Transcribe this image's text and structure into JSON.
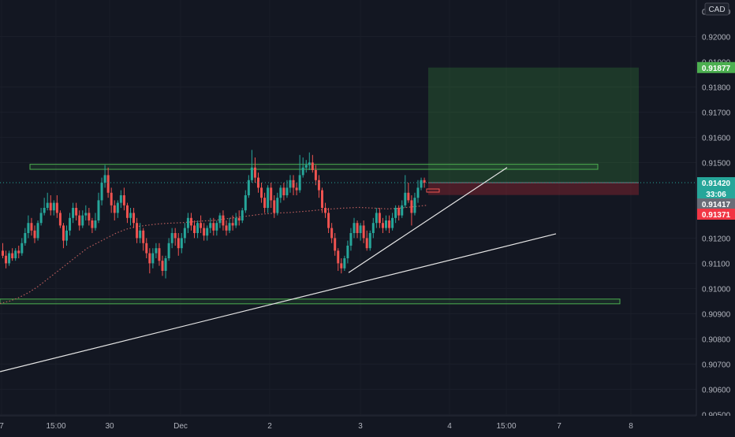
{
  "chart_data": {
    "type": "candlestick",
    "currency_label": "CAD",
    "ylim": [
      0.90495,
      0.92145
    ],
    "y_ticks": [
      "0.92000",
      "0.91800",
      "0.91700",
      "0.91600",
      "0.91500",
      "0.91200",
      "0.91100",
      "0.91000",
      "0.90900",
      "0.90800",
      "0.90700",
      "0.90600",
      "0.90500"
    ],
    "x_ticks": [
      "7",
      "15:00",
      "30",
      "Dec",
      "2",
      "3",
      "4",
      "15:00",
      "7",
      "8"
    ],
    "price_labels": {
      "target": "0.91877",
      "last": "0.91420",
      "countdown": "33:06",
      "avg": "0.91417",
      "stop": "0.91371"
    },
    "partially_hidden_ticks": [
      "0.91900",
      "0.92100"
    ],
    "zones": [
      {
        "name": "upper-resistance-zone",
        "y_top": 0.91493,
        "y_bottom": 0.91473
      },
      {
        "name": "lower-support-zone",
        "y_top": 0.90958,
        "y_bottom": 0.9095
      }
    ],
    "position": {
      "entry": 0.9142,
      "target": 0.91877,
      "stop": 0.91371
    },
    "trendlines": [
      {
        "name": "long-trendline",
        "from": 0.9067,
        "to": 0.91217
      },
      {
        "name": "short-trendline",
        "from": 0.91063,
        "to": 0.9148
      }
    ],
    "candles": [
      [
        0.9115,
        0.9113,
        0.9118,
        0.9112
      ],
      [
        0.9113,
        0.911,
        0.9115,
        0.9108
      ],
      [
        0.911,
        0.9114,
        0.9115,
        0.9109
      ],
      [
        0.9114,
        0.9112,
        0.9116,
        0.9111
      ],
      [
        0.9112,
        0.9115,
        0.9116,
        0.9111
      ],
      [
        0.9115,
        0.9114,
        0.9117,
        0.9112
      ],
      [
        0.9114,
        0.9118,
        0.912,
        0.9113
      ],
      [
        0.9118,
        0.9122,
        0.9124,
        0.9117
      ],
      [
        0.9122,
        0.9126,
        0.9129,
        0.912
      ],
      [
        0.9126,
        0.9123,
        0.9128,
        0.9121
      ],
      [
        0.9123,
        0.912,
        0.9125,
        0.9118
      ],
      [
        0.912,
        0.9126,
        0.9127,
        0.9119
      ],
      [
        0.9126,
        0.913,
        0.9132,
        0.9125
      ],
      [
        0.913,
        0.9132,
        0.9136,
        0.9129
      ],
      [
        0.9132,
        0.9134,
        0.9138,
        0.9131
      ],
      [
        0.9134,
        0.9131,
        0.9137,
        0.9129
      ],
      [
        0.9131,
        0.9134,
        0.9135,
        0.9129
      ],
      [
        0.9134,
        0.913,
        0.9137,
        0.9128
      ],
      [
        0.913,
        0.9125,
        0.9131,
        0.9124
      ],
      [
        0.9125,
        0.9119,
        0.9126,
        0.9116
      ],
      [
        0.9119,
        0.9123,
        0.9125,
        0.9117
      ],
      [
        0.9123,
        0.9128,
        0.913,
        0.9121
      ],
      [
        0.9128,
        0.9132,
        0.9134,
        0.9126
      ],
      [
        0.9132,
        0.9129,
        0.9134,
        0.9127
      ],
      [
        0.9129,
        0.9125,
        0.9131,
        0.9123
      ],
      [
        0.9125,
        0.9129,
        0.9131,
        0.9124
      ],
      [
        0.9129,
        0.913,
        0.9133,
        0.9127
      ],
      [
        0.913,
        0.9127,
        0.9132,
        0.9125
      ],
      [
        0.9127,
        0.9124,
        0.9128,
        0.9122
      ],
      [
        0.9124,
        0.9127,
        0.913,
        0.9123
      ],
      [
        0.9127,
        0.9135,
        0.9138,
        0.9126
      ],
      [
        0.9135,
        0.9142,
        0.9144,
        0.9133
      ],
      [
        0.9142,
        0.9145,
        0.9149,
        0.914
      ],
      [
        0.9145,
        0.9138,
        0.9148,
        0.9136
      ],
      [
        0.9138,
        0.9133,
        0.914,
        0.913
      ],
      [
        0.9133,
        0.913,
        0.9135,
        0.9127
      ],
      [
        0.913,
        0.9134,
        0.9135,
        0.9128
      ],
      [
        0.9134,
        0.9137,
        0.9139,
        0.9132
      ],
      [
        0.9137,
        0.9133,
        0.914,
        0.9131
      ],
      [
        0.9133,
        0.9128,
        0.9134,
        0.9126
      ],
      [
        0.9128,
        0.913,
        0.9132,
        0.9125
      ],
      [
        0.913,
        0.9126,
        0.9132,
        0.9124
      ],
      [
        0.9126,
        0.912,
        0.9128,
        0.9118
      ],
      [
        0.912,
        0.9123,
        0.9126,
        0.9118
      ],
      [
        0.9123,
        0.9118,
        0.9124,
        0.9115
      ],
      [
        0.9118,
        0.9114,
        0.912,
        0.9112
      ],
      [
        0.9114,
        0.911,
        0.9116,
        0.9106
      ],
      [
        0.911,
        0.9114,
        0.9116,
        0.9108
      ],
      [
        0.9114,
        0.9116,
        0.9118,
        0.9112
      ],
      [
        0.9116,
        0.9111,
        0.9118,
        0.9109
      ],
      [
        0.9111,
        0.9107,
        0.9113,
        0.9105
      ],
      [
        0.9107,
        0.9112,
        0.9113,
        0.9104
      ],
      [
        0.9112,
        0.9118,
        0.912,
        0.9111
      ],
      [
        0.9118,
        0.9122,
        0.9124,
        0.9116
      ],
      [
        0.9122,
        0.912,
        0.9124,
        0.9117
      ],
      [
        0.912,
        0.9116,
        0.9122,
        0.9113
      ],
      [
        0.9116,
        0.912,
        0.9122,
        0.9114
      ],
      [
        0.912,
        0.9124,
        0.9126,
        0.9118
      ],
      [
        0.9124,
        0.9128,
        0.913,
        0.9122
      ],
      [
        0.9128,
        0.9125,
        0.913,
        0.9123
      ],
      [
        0.9125,
        0.9122,
        0.9127,
        0.912
      ],
      [
        0.9122,
        0.9126,
        0.9127,
        0.912
      ],
      [
        0.9126,
        0.9124,
        0.9129,
        0.9122
      ],
      [
        0.9124,
        0.9121,
        0.9126,
        0.9119
      ],
      [
        0.9121,
        0.9124,
        0.9125,
        0.9119
      ],
      [
        0.9124,
        0.9126,
        0.9128,
        0.9122
      ],
      [
        0.9126,
        0.9123,
        0.9128,
        0.9121
      ],
      [
        0.9123,
        0.9126,
        0.9127,
        0.9121
      ],
      [
        0.9126,
        0.9129,
        0.913,
        0.9124
      ],
      [
        0.9129,
        0.9125,
        0.9131,
        0.9123
      ],
      [
        0.9125,
        0.9123,
        0.9127,
        0.9121
      ],
      [
        0.9123,
        0.9126,
        0.9128,
        0.9122
      ],
      [
        0.9126,
        0.9125,
        0.9129,
        0.9123
      ],
      [
        0.9125,
        0.9128,
        0.913,
        0.9124
      ],
      [
        0.9128,
        0.9127,
        0.9131,
        0.9125
      ],
      [
        0.9127,
        0.9131,
        0.9132,
        0.9126
      ],
      [
        0.9131,
        0.9137,
        0.9139,
        0.913
      ],
      [
        0.9137,
        0.9143,
        0.9145,
        0.9136
      ],
      [
        0.9143,
        0.9148,
        0.9155,
        0.9142
      ],
      [
        0.9148,
        0.9144,
        0.9152,
        0.9142
      ],
      [
        0.9144,
        0.914,
        0.9146,
        0.9138
      ],
      [
        0.914,
        0.9136,
        0.9142,
        0.9134
      ],
      [
        0.9136,
        0.9132,
        0.9138,
        0.913
      ],
      [
        0.9132,
        0.914,
        0.9141,
        0.913
      ],
      [
        0.914,
        0.9135,
        0.9142,
        0.9132
      ],
      [
        0.9135,
        0.913,
        0.9137,
        0.9128
      ],
      [
        0.913,
        0.9136,
        0.9138,
        0.9129
      ],
      [
        0.9136,
        0.914,
        0.9141,
        0.9134
      ],
      [
        0.914,
        0.9137,
        0.9142,
        0.9135
      ],
      [
        0.9137,
        0.914,
        0.9143,
        0.9136
      ],
      [
        0.914,
        0.9143,
        0.9145,
        0.9138
      ],
      [
        0.9143,
        0.914,
        0.9145,
        0.9137
      ],
      [
        0.914,
        0.9139,
        0.9142,
        0.9137
      ],
      [
        0.9139,
        0.9145,
        0.9153,
        0.9138
      ],
      [
        0.9145,
        0.9148,
        0.9152,
        0.9144
      ],
      [
        0.9148,
        0.9149,
        0.9151,
        0.9146
      ],
      [
        0.9149,
        0.915,
        0.9154,
        0.9147
      ],
      [
        0.915,
        0.9147,
        0.9153,
        0.9146
      ],
      [
        0.9147,
        0.9143,
        0.9149,
        0.9141
      ],
      [
        0.9143,
        0.9139,
        0.9145,
        0.9136
      ],
      [
        0.9139,
        0.9132,
        0.914,
        0.913
      ],
      [
        0.9132,
        0.913,
        0.9134,
        0.9128
      ],
      [
        0.913,
        0.9124,
        0.9132,
        0.9122
      ],
      [
        0.9124,
        0.912,
        0.9126,
        0.9118
      ],
      [
        0.912,
        0.9115,
        0.9122,
        0.9113
      ],
      [
        0.9115,
        0.911,
        0.9116,
        0.9107
      ],
      [
        0.911,
        0.9108,
        0.9112,
        0.9106
      ],
      [
        0.9108,
        0.9112,
        0.9113,
        0.9107
      ],
      [
        0.9112,
        0.9117,
        0.9119,
        0.911
      ],
      [
        0.9117,
        0.9122,
        0.9124,
        0.9115
      ],
      [
        0.9122,
        0.9126,
        0.9128,
        0.912
      ],
      [
        0.9126,
        0.9122,
        0.9127,
        0.912
      ],
      [
        0.9122,
        0.9125,
        0.9126,
        0.9119
      ],
      [
        0.9125,
        0.912,
        0.9127,
        0.9118
      ],
      [
        0.912,
        0.9116,
        0.9123,
        0.9115
      ],
      [
        0.9116,
        0.9122,
        0.9123,
        0.9115
      ],
      [
        0.9122,
        0.9126,
        0.9128,
        0.912
      ],
      [
        0.9126,
        0.913,
        0.9132,
        0.9124
      ],
      [
        0.913,
        0.9126,
        0.9132,
        0.9124
      ],
      [
        0.9126,
        0.9124,
        0.9128,
        0.9122
      ],
      [
        0.9124,
        0.9127,
        0.9129,
        0.9123
      ],
      [
        0.9127,
        0.9124,
        0.9129,
        0.9122
      ],
      [
        0.9124,
        0.9128,
        0.913,
        0.9123
      ],
      [
        0.9128,
        0.9132,
        0.9133,
        0.9126
      ],
      [
        0.9132,
        0.9129,
        0.9133,
        0.9127
      ],
      [
        0.9129,
        0.9133,
        0.9135,
        0.9128
      ],
      [
        0.9133,
        0.9138,
        0.9145,
        0.9132
      ],
      [
        0.9138,
        0.9135,
        0.9142,
        0.9134
      ],
      [
        0.9135,
        0.913,
        0.9137,
        0.9125
      ],
      [
        0.913,
        0.9136,
        0.9138,
        0.9129
      ],
      [
        0.9136,
        0.914,
        0.9143,
        0.9134
      ],
      [
        0.914,
        0.9143,
        0.9144,
        0.9139
      ],
      [
        0.9143,
        0.9142,
        0.9144,
        0.914
      ]
    ],
    "moving_average": [
      0.9094,
      0.9095,
      0.90965,
      0.90985,
      0.9101,
      0.9104,
      0.9107,
      0.911,
      0.9113,
      0.9116,
      0.9118,
      0.912,
      0.9122,
      0.91235,
      0.91245,
      0.9125,
      0.91255,
      0.91258,
      0.9126,
      0.91262,
      0.91265,
      0.91268,
      0.9127,
      0.91275,
      0.9128,
      0.91285,
      0.9129,
      0.91295,
      0.91298,
      0.913,
      0.91302,
      0.91305,
      0.91308,
      0.91312,
      0.91315,
      0.91318,
      0.9132,
      0.91322,
      0.9132,
      0.91318,
      0.91316,
      0.91318,
      0.91322,
      0.91326,
      0.9133
    ]
  }
}
